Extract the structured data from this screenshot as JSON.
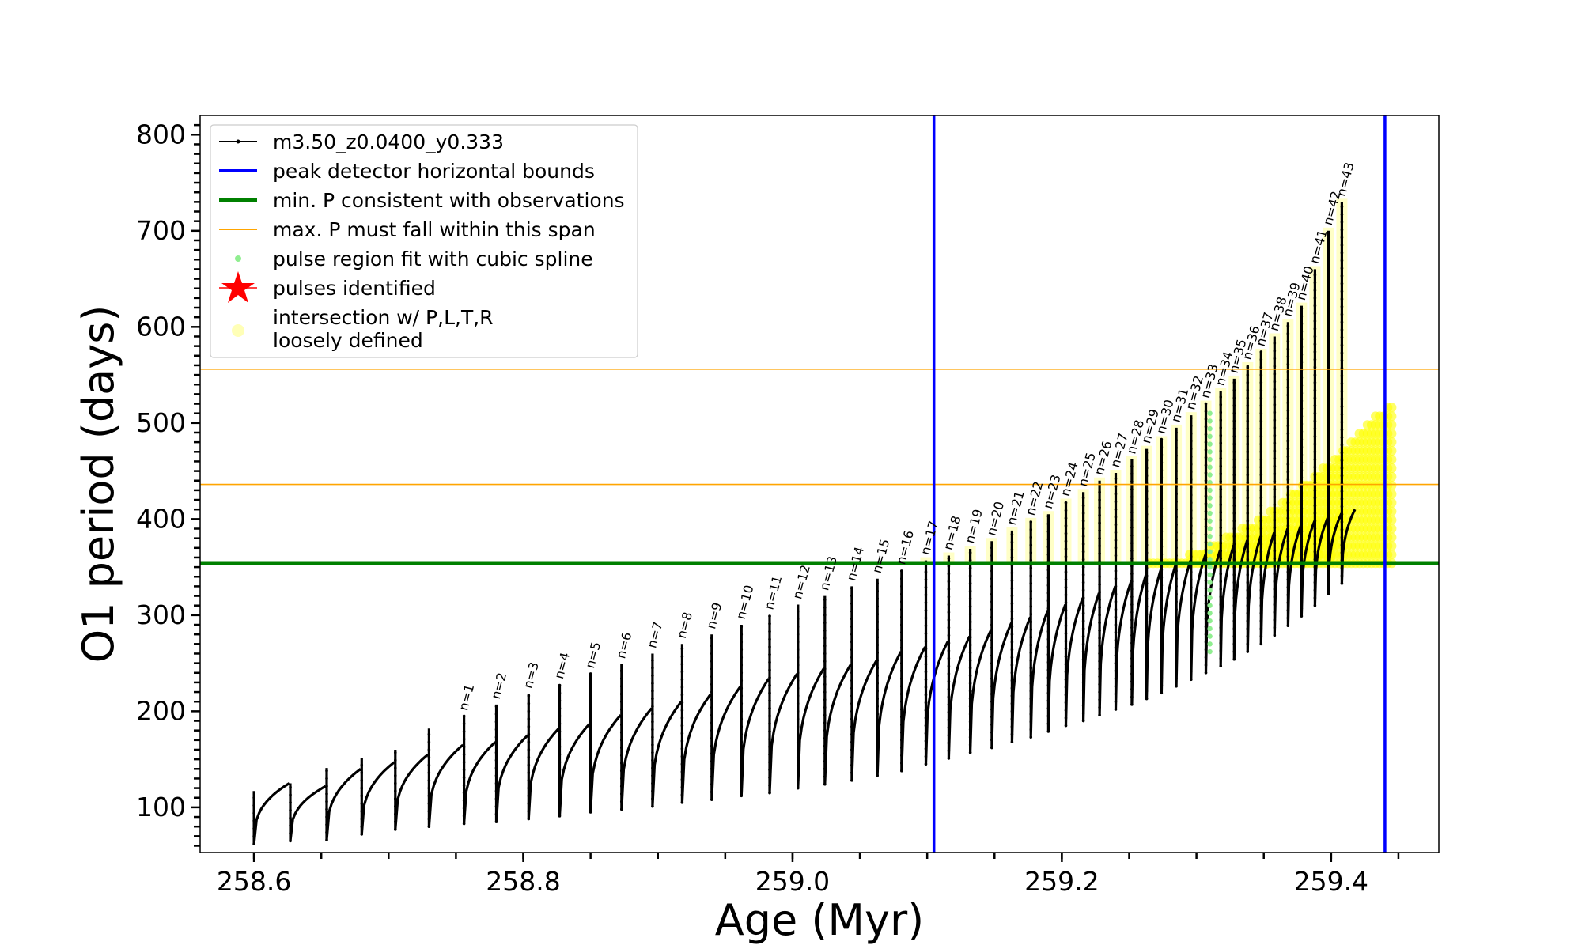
{
  "chart_data": {
    "type": "line",
    "xlabel": "Age (Myr)",
    "ylabel": "O1 period (days)",
    "xlim": [
      258.56,
      259.48
    ],
    "ylim": [
      53,
      820
    ],
    "xticks": [
      258.6,
      258.8,
      259.0,
      259.2,
      259.4
    ],
    "xtick_labels": [
      "258.6",
      "258.8",
      "259.0",
      "259.2",
      "259.4"
    ],
    "yticks": [
      100,
      200,
      300,
      400,
      500,
      600,
      700,
      800
    ],
    "ytick_labels": [
      "100",
      "200",
      "300",
      "400",
      "500",
      "600",
      "700",
      "800"
    ],
    "grid": false,
    "legend_position": "top-left",
    "legend": [
      {
        "label": "m3.50_z0.0400_y0.333",
        "kind": "line-marker",
        "color": "#000000"
      },
      {
        "label": "peak detector horizontal bounds",
        "kind": "line",
        "color": "#0000ff"
      },
      {
        "label": "min. P consistent with observations",
        "kind": "line",
        "color": "#008000"
      },
      {
        "label": "max. P must fall within this span",
        "kind": "line",
        "color": "#ffa500"
      },
      {
        "label": "pulse region fit with cubic spline",
        "kind": "dot",
        "color": "#90ee90"
      },
      {
        "label": "pulses identified",
        "kind": "star",
        "color": "#ff0000"
      },
      {
        "label": "intersection w/ P,L,T,R",
        "label2": "loosely defined",
        "kind": "dot-big",
        "color": "#ffff99"
      }
    ],
    "series_name": "m3.50_z0.0400_y0.333",
    "vertical_lines": [
      {
        "x": 259.105,
        "color": "#0000ff",
        "label": "peak detector horizontal bounds"
      },
      {
        "x": 259.44,
        "color": "#0000ff"
      }
    ],
    "horizontal_lines": [
      {
        "y": 354,
        "color": "#008000",
        "label": "min. P consistent with observations"
      },
      {
        "y": 436,
        "color": "#ffa500",
        "label": "max. P must fall within this span"
      },
      {
        "y": 556,
        "color": "#ffa500"
      }
    ],
    "highlight_x": 259.31,
    "pulses": [
      {
        "n": "",
        "x": 258.6,
        "peak": 117,
        "top": 125,
        "min": 62
      },
      {
        "n": "",
        "x": 258.627,
        "peak": 125,
        "top": 122,
        "min": 65
      },
      {
        "n": "",
        "x": 258.654,
        "peak": 141,
        "top": 140,
        "min": 66
      },
      {
        "n": "",
        "x": 258.68,
        "peak": 151,
        "top": 147,
        "min": 72
      },
      {
        "n": "",
        "x": 258.705,
        "peak": 160,
        "top": 155,
        "min": 77
      },
      {
        "n": "",
        "x": 258.73,
        "peak": 182,
        "top": 165,
        "min": 80
      },
      {
        "n": "n=1",
        "x": 258.756,
        "peak": 195,
        "top": 168,
        "min": 83
      },
      {
        "n": "n=2",
        "x": 258.78,
        "peak": 207,
        "top": 175,
        "min": 85
      },
      {
        "n": "n=3",
        "x": 258.804,
        "peak": 218,
        "top": 182,
        "min": 88
      },
      {
        "n": "n=4",
        "x": 258.827,
        "peak": 228,
        "top": 187,
        "min": 91
      },
      {
        "n": "n=5",
        "x": 258.85,
        "peak": 239,
        "top": 196,
        "min": 95
      },
      {
        "n": "n=6",
        "x": 258.873,
        "peak": 249,
        "top": 203,
        "min": 98
      },
      {
        "n": "n=7",
        "x": 258.896,
        "peak": 260,
        "top": 210,
        "min": 101
      },
      {
        "n": "n=8",
        "x": 258.918,
        "peak": 270,
        "top": 218,
        "min": 105
      },
      {
        "n": "n=9",
        "x": 258.94,
        "peak": 280,
        "top": 226,
        "min": 108
      },
      {
        "n": "n=10",
        "x": 258.962,
        "peak": 290,
        "top": 234,
        "min": 112
      },
      {
        "n": "n=11",
        "x": 258.983,
        "peak": 300,
        "top": 239,
        "min": 115
      },
      {
        "n": "n=12",
        "x": 259.004,
        "peak": 311,
        "top": 245,
        "min": 120
      },
      {
        "n": "n=13",
        "x": 259.024,
        "peak": 320,
        "top": 249,
        "min": 124
      },
      {
        "n": "n=14",
        "x": 259.044,
        "peak": 330,
        "top": 253,
        "min": 128
      },
      {
        "n": "n=15",
        "x": 259.063,
        "peak": 338,
        "top": 262,
        "min": 133
      },
      {
        "n": "n=16",
        "x": 259.081,
        "peak": 347,
        "top": 267,
        "min": 138
      },
      {
        "n": "n=17",
        "x": 259.099,
        "peak": 357,
        "top": 273,
        "min": 145
      },
      {
        "n": "n=18",
        "x": 259.116,
        "peak": 362,
        "top": 278,
        "min": 151
      },
      {
        "n": "n=19",
        "x": 259.132,
        "peak": 369,
        "top": 285,
        "min": 157
      },
      {
        "n": "n=20",
        "x": 259.148,
        "peak": 377,
        "top": 292,
        "min": 162
      },
      {
        "n": "n=21",
        "x": 259.163,
        "peak": 388,
        "top": 298,
        "min": 168
      },
      {
        "n": "n=22",
        "x": 259.177,
        "peak": 398,
        "top": 305,
        "min": 173
      },
      {
        "n": "n=23",
        "x": 259.19,
        "peak": 405,
        "top": 311,
        "min": 179
      },
      {
        "n": "n=24",
        "x": 259.203,
        "peak": 418,
        "top": 318,
        "min": 185
      },
      {
        "n": "n=25",
        "x": 259.216,
        "peak": 428,
        "top": 323,
        "min": 190
      },
      {
        "n": "n=26",
        "x": 259.228,
        "peak": 440,
        "top": 330,
        "min": 196
      },
      {
        "n": "n=27",
        "x": 259.24,
        "peak": 448,
        "top": 336,
        "min": 202
      },
      {
        "n": "n=28",
        "x": 259.252,
        "peak": 462,
        "top": 343,
        "min": 207
      },
      {
        "n": "n=29",
        "x": 259.263,
        "peak": 473,
        "top": 348,
        "min": 213
      },
      {
        "n": "n=30",
        "x": 259.274,
        "peak": 483,
        "top": 353,
        "min": 219
      },
      {
        "n": "n=31",
        "x": 259.285,
        "peak": 495,
        "top": 357,
        "min": 226
      },
      {
        "n": "n=32",
        "x": 259.296,
        "peak": 508,
        "top": 363,
        "min": 233
      },
      {
        "n": "n=33",
        "x": 259.307,
        "peak": 520,
        "top": 368,
        "min": 240
      },
      {
        "n": "n=34",
        "x": 259.318,
        "peak": 533,
        "top": 373,
        "min": 247
      },
      {
        "n": "n=35",
        "x": 259.328,
        "peak": 546,
        "top": 378,
        "min": 254
      },
      {
        "n": "n=36",
        "x": 259.338,
        "peak": 560,
        "top": 382,
        "min": 262
      },
      {
        "n": "n=37",
        "x": 259.348,
        "peak": 574,
        "top": 386,
        "min": 270
      },
      {
        "n": "n=38",
        "x": 259.358,
        "peak": 590,
        "top": 390,
        "min": 279
      },
      {
        "n": "n=39",
        "x": 259.368,
        "peak": 605,
        "top": 394,
        "min": 289
      },
      {
        "n": "n=40",
        "x": 259.378,
        "peak": 622,
        "top": 398,
        "min": 299
      },
      {
        "n": "n=41",
        "x": 259.388,
        "peak": 660,
        "top": 402,
        "min": 310
      },
      {
        "n": "n=42",
        "x": 259.398,
        "peak": 700,
        "top": 406,
        "min": 322
      },
      {
        "n": "n=43",
        "x": 259.408,
        "peak": 730,
        "top": 410,
        "min": 333
      }
    ],
    "pulse_labels_extra": [
      {
        "n": "n=41",
        "x": 259.405
      },
      {
        "n": "n=42",
        "x": 259.42
      },
      {
        "n": "n=43",
        "x": 259.437
      }
    ]
  }
}
